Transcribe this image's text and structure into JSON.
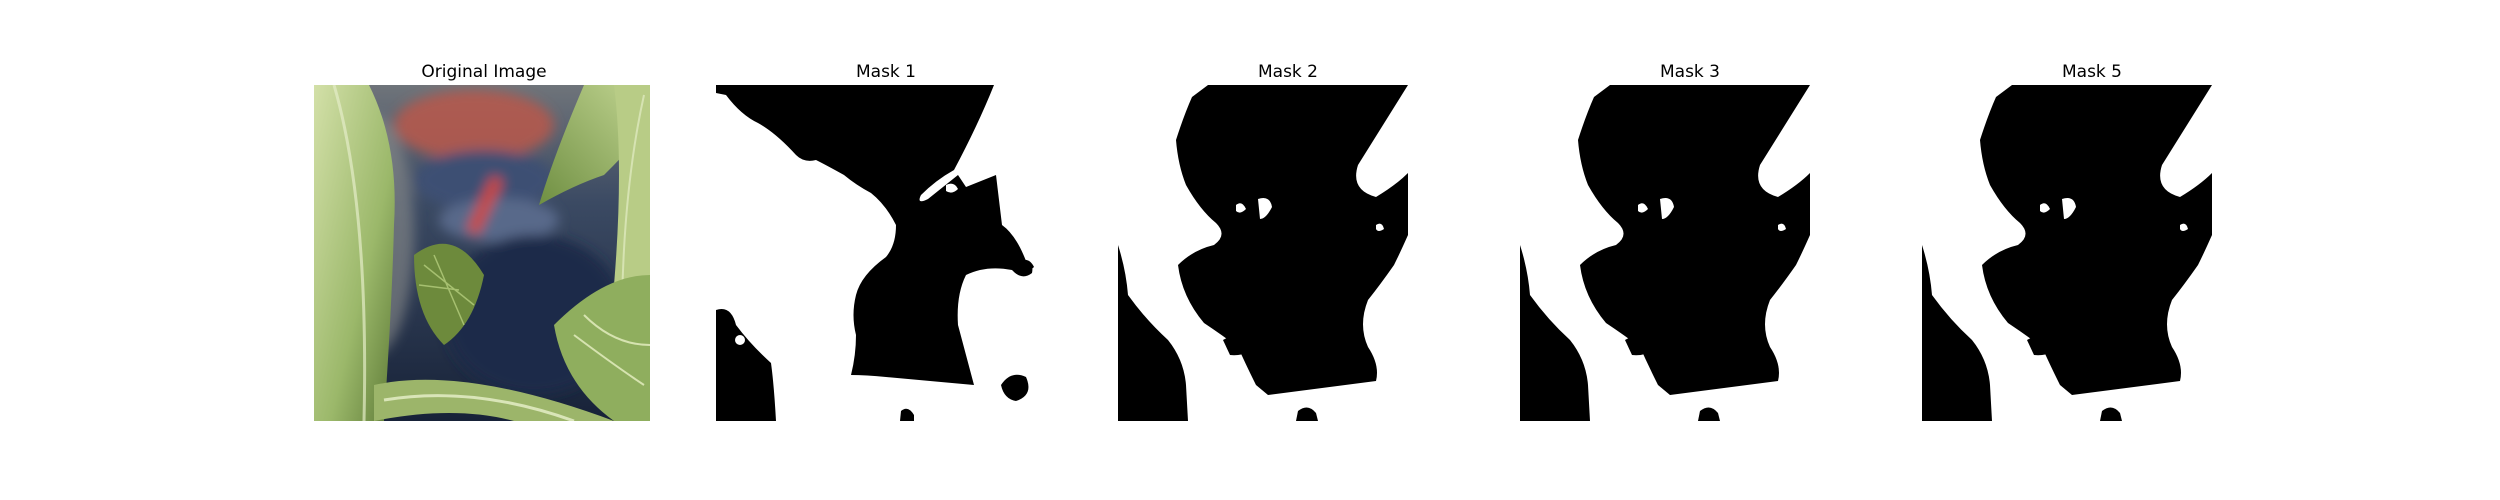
{
  "panels": [
    {
      "title": "Original Image"
    },
    {
      "title": "Mask 1"
    },
    {
      "title": "Mask 2"
    },
    {
      "title": "Mask 3"
    },
    {
      "title": "Mask 5"
    }
  ],
  "colors": {
    "background": "#ffffff",
    "mask_foreground": "#000000",
    "mask_background": "#ffffff",
    "leaf_light": "#c7d79a",
    "leaf_mid": "#8fae5e",
    "leaf_dark": "#4f6b2e",
    "bg_dark_blue": "#1e3050",
    "bg_red": "#c8503c",
    "bg_grey": "#7a8088"
  }
}
